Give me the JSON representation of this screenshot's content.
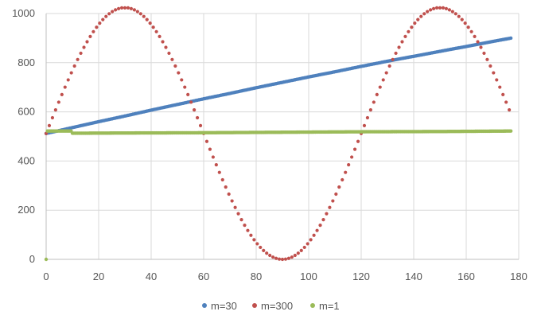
{
  "chart_data": {
    "type": "scatter",
    "title": "",
    "xlabel": "",
    "ylabel": "",
    "xlim": [
      0,
      180
    ],
    "ylim": [
      0,
      1000
    ],
    "x_ticks": [
      0,
      20,
      40,
      60,
      80,
      100,
      120,
      140,
      160,
      180
    ],
    "y_ticks": [
      0,
      200,
      400,
      600,
      800,
      1000
    ],
    "x_tick_labels": [
      "0",
      "20",
      "40",
      "60",
      "80",
      "100",
      "120",
      "140",
      "160",
      "180"
    ],
    "y_tick_labels": [
      "0",
      "200",
      "400",
      "600",
      "800",
      "1000"
    ],
    "grid": true,
    "legend_position": "bottom",
    "series": [
      {
        "name": "m=30",
        "color": "#4f81bd",
        "points": [
          [
            0,
            512
          ],
          [
            10,
            536
          ],
          [
            20,
            560
          ],
          [
            30,
            583
          ],
          [
            40,
            607
          ],
          [
            50,
            630
          ],
          [
            60,
            653
          ],
          [
            70,
            675
          ],
          [
            80,
            698
          ],
          [
            90,
            720
          ],
          [
            100,
            742
          ],
          [
            110,
            763
          ],
          [
            120,
            785
          ],
          [
            130,
            806
          ],
          [
            140,
            826
          ],
          [
            150,
            846
          ],
          [
            160,
            866
          ],
          [
            170,
            886
          ],
          [
            177,
            900
          ]
        ]
      },
      {
        "name": "m=300",
        "color": "#c0504d",
        "points": [
          [
            0,
            512
          ],
          [
            10,
            768
          ],
          [
            20,
            955
          ],
          [
            30,
            1023
          ],
          [
            40,
            955
          ],
          [
            50,
            768
          ],
          [
            60,
            512
          ],
          [
            70,
            256
          ],
          [
            80,
            69
          ],
          [
            90,
            0
          ],
          [
            100,
            69
          ],
          [
            110,
            256
          ],
          [
            120,
            512
          ],
          [
            130,
            768
          ],
          [
            140,
            955
          ],
          [
            150,
            1023
          ],
          [
            160,
            955
          ],
          [
            170,
            768
          ],
          [
            177,
            582
          ]
        ]
      },
      {
        "name": "m=1",
        "color": "#9bbb59",
        "points": [
          [
            0,
            0
          ],
          [
            10,
            513
          ],
          [
            30,
            514
          ],
          [
            60,
            515
          ],
          [
            90,
            517
          ],
          [
            120,
            519
          ],
          [
            150,
            520
          ],
          [
            177,
            522
          ]
        ]
      }
    ]
  }
}
